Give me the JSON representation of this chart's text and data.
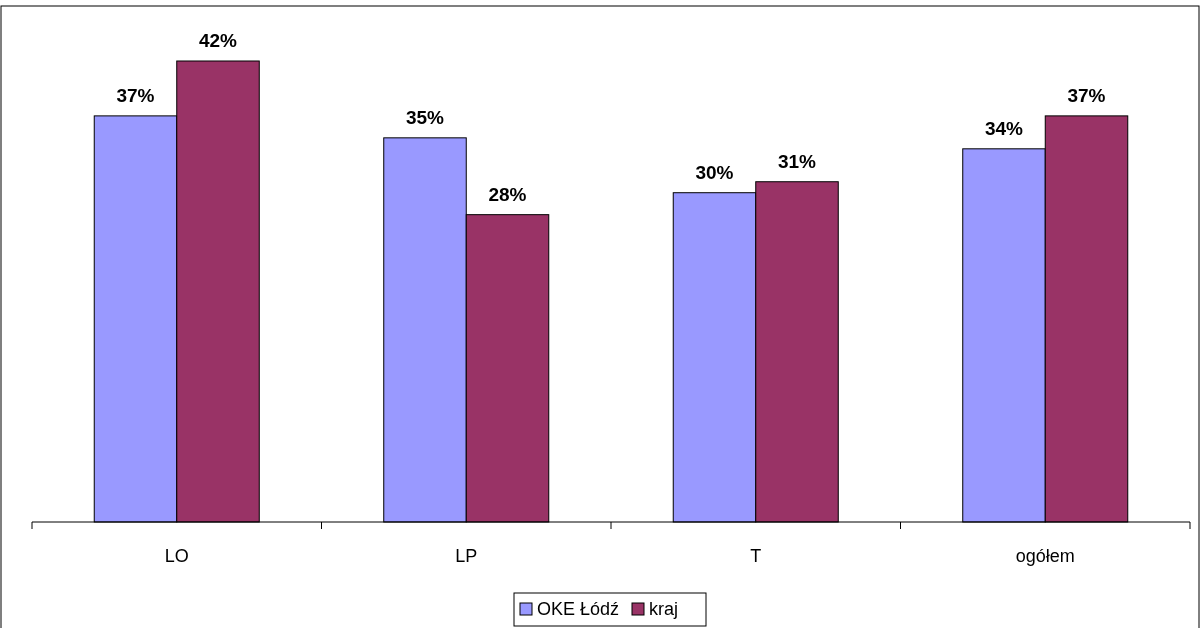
{
  "chart_data": {
    "type": "bar",
    "categories": [
      "LO",
      "LP",
      "T",
      "ogółem"
    ],
    "series": [
      {
        "name": "OKE Łódź",
        "color": "#9999ff",
        "values": [
          37,
          35,
          30,
          34
        ],
        "value_labels": [
          "37%",
          "35%",
          "30%",
          "34%"
        ]
      },
      {
        "name": "kraj",
        "color": "#993366",
        "values": [
          42,
          28,
          31,
          37
        ],
        "value_labels": [
          "42%",
          "28%",
          "31%",
          "37%"
        ]
      }
    ],
    "legend": "bottom",
    "grid": false
  }
}
